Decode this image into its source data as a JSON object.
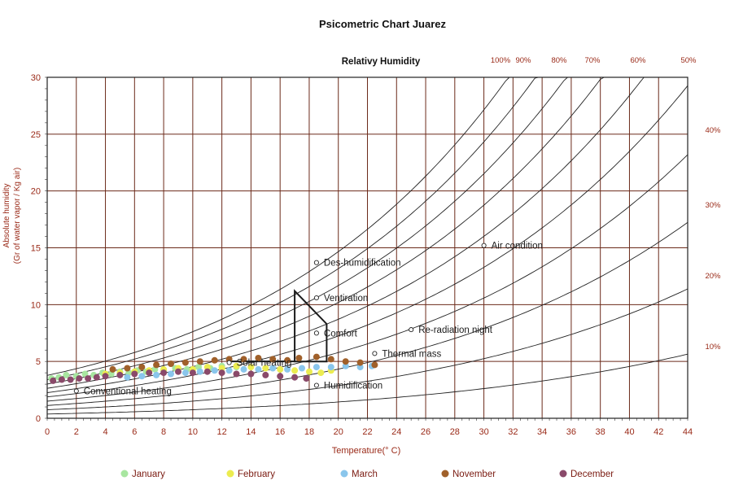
{
  "chart_data": {
    "type": "scatter",
    "title": "Psicometric Chart Juarez",
    "rh_header": "Relativy Humidity",
    "xlabel": "Temperature(° C)",
    "ylabel_line1": "Absolute humidity",
    "ylabel_line2": "(Gr of water vapor / Kg air)",
    "xlim": [
      0,
      44
    ],
    "ylim": [
      0,
      30
    ],
    "x_ticks": [
      0,
      2,
      4,
      6,
      8,
      10,
      12,
      14,
      16,
      18,
      20,
      22,
      24,
      26,
      28,
      30,
      32,
      34,
      36,
      38,
      40,
      42,
      44
    ],
    "y_ticks": [
      0,
      5,
      10,
      15,
      20,
      25,
      30
    ],
    "grid": true,
    "legend_position": "bottom",
    "rh_curves": [
      100,
      90,
      80,
      70,
      60,
      50,
      40,
      30,
      20,
      10
    ],
    "rh_labels_top": [
      "100%",
      "90%",
      "80%",
      "70%",
      "60%",
      "50%"
    ],
    "rh_labels_right": [
      "40%",
      "30%",
      "20%",
      "10%"
    ],
    "comfort_zone": [
      [
        17,
        5.0
      ],
      [
        17,
        11.2
      ],
      [
        19.2,
        8.3
      ],
      [
        19.2,
        5.0
      ]
    ],
    "strategies": [
      {
        "label": "Air condition",
        "x": 30.0,
        "y": 15.2
      },
      {
        "label": "Des-humidification",
        "x": 18.5,
        "y": 13.7
      },
      {
        "label": "Ventiration",
        "x": 18.5,
        "y": 10.6
      },
      {
        "label": "Comfort",
        "x": 18.5,
        "y": 7.5
      },
      {
        "label": "Re-radiation night",
        "x": 25.0,
        "y": 7.8
      },
      {
        "label": "Thermal mass",
        "x": 22.5,
        "y": 5.7
      },
      {
        "label": "Solar heating",
        "x": 12.5,
        "y": 4.9
      },
      {
        "label": "Humidification",
        "x": 18.5,
        "y": 2.9
      },
      {
        "label": "Conventional heating",
        "x": 2.0,
        "y": 2.4
      }
    ],
    "series": [
      {
        "name": "January",
        "color": "#a8e6a0",
        "points": [
          [
            0.3,
            3.5
          ],
          [
            0.8,
            3.6
          ],
          [
            1.3,
            3.8
          ],
          [
            2.0,
            3.7
          ],
          [
            2.6,
            3.9
          ],
          [
            3.2,
            3.8
          ],
          [
            3.8,
            4.0
          ],
          [
            4.4,
            3.9
          ],
          [
            5.0,
            4.1
          ],
          [
            5.6,
            4.0
          ],
          [
            6.2,
            4.2
          ],
          [
            6.8,
            4.1
          ],
          [
            7.4,
            4.3
          ],
          [
            8.0,
            4.2
          ],
          [
            8.8,
            4.4
          ],
          [
            9.6,
            4.3
          ],
          [
            10.4,
            4.5
          ],
          [
            11.2,
            4.4
          ],
          [
            12.0,
            4.6
          ],
          [
            13.0,
            4.5
          ]
        ]
      },
      {
        "name": "February",
        "color": "#ecec50",
        "points": [
          [
            4.0,
            3.9
          ],
          [
            5.0,
            4.0
          ],
          [
            6.0,
            4.1
          ],
          [
            7.0,
            4.2
          ],
          [
            8.0,
            4.3
          ],
          [
            9.0,
            4.4
          ],
          [
            10.0,
            4.3
          ],
          [
            11.0,
            4.5
          ],
          [
            12.0,
            4.4
          ],
          [
            13.0,
            4.6
          ],
          [
            14.0,
            4.5
          ],
          [
            15.0,
            4.4
          ],
          [
            16.0,
            4.3
          ],
          [
            17.0,
            4.2
          ],
          [
            18.0,
            4.1
          ],
          [
            18.8,
            4.0
          ],
          [
            19.5,
            4.2
          ]
        ]
      },
      {
        "name": "March",
        "color": "#8ac6ec",
        "points": [
          [
            5.5,
            3.6
          ],
          [
            6.5,
            3.7
          ],
          [
            7.5,
            3.8
          ],
          [
            8.5,
            3.9
          ],
          [
            9.5,
            4.0
          ],
          [
            10.5,
            4.1
          ],
          [
            11.5,
            4.2
          ],
          [
            12.5,
            4.2
          ],
          [
            13.5,
            4.3
          ],
          [
            14.5,
            4.3
          ],
          [
            15.5,
            4.4
          ],
          [
            16.5,
            4.3
          ],
          [
            17.5,
            4.4
          ],
          [
            18.5,
            4.5
          ],
          [
            19.5,
            4.5
          ],
          [
            20.5,
            4.6
          ],
          [
            21.5,
            4.5
          ],
          [
            22.3,
            4.6
          ]
        ]
      },
      {
        "name": "November",
        "color": "#a0602a",
        "points": [
          [
            4.5,
            4.3
          ],
          [
            5.5,
            4.4
          ],
          [
            6.5,
            4.5
          ],
          [
            7.5,
            4.7
          ],
          [
            8.5,
            4.8
          ],
          [
            9.5,
            4.9
          ],
          [
            10.5,
            5.0
          ],
          [
            11.5,
            5.1
          ],
          [
            12.5,
            5.2
          ],
          [
            13.5,
            5.2
          ],
          [
            14.5,
            5.3
          ],
          [
            15.5,
            5.2
          ],
          [
            16.5,
            5.1
          ],
          [
            17.3,
            5.3
          ],
          [
            18.5,
            5.4
          ],
          [
            19.5,
            5.2
          ],
          [
            20.5,
            5.0
          ],
          [
            21.5,
            4.9
          ],
          [
            22.5,
            4.7
          ]
        ]
      },
      {
        "name": "December",
        "color": "#8a4a6a",
        "points": [
          [
            0.4,
            3.3
          ],
          [
            1.0,
            3.4
          ],
          [
            1.6,
            3.4
          ],
          [
            2.2,
            3.5
          ],
          [
            2.8,
            3.5
          ],
          [
            3.4,
            3.6
          ],
          [
            4.0,
            3.7
          ],
          [
            5.0,
            3.8
          ],
          [
            6.0,
            3.9
          ],
          [
            7.0,
            4.0
          ],
          [
            8.0,
            4.0
          ],
          [
            9.0,
            4.1
          ],
          [
            10.0,
            4.0
          ],
          [
            11.0,
            4.1
          ],
          [
            12.0,
            4.0
          ],
          [
            13.0,
            3.9
          ],
          [
            14.0,
            3.9
          ],
          [
            15.0,
            3.8
          ],
          [
            16.0,
            3.7
          ],
          [
            17.0,
            3.6
          ],
          [
            17.8,
            3.5
          ]
        ]
      }
    ]
  }
}
